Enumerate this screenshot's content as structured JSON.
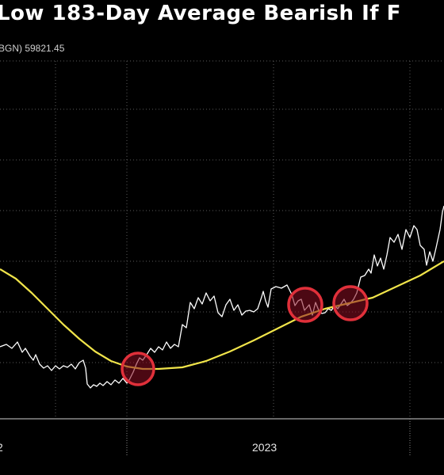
{
  "chart_data": {
    "type": "line",
    "title": "Low 183-Day Average Bearish If F",
    "subtitle": "BGN) 59821.45",
    "x_ticks": [
      "2",
      "2023"
    ],
    "xlabel": "",
    "ylabel": "",
    "grid": true,
    "series": [
      {
        "color": "#ffffff",
        "points": [
          [
            0,
            438
          ],
          [
            8,
            435
          ],
          [
            15,
            440
          ],
          [
            22,
            432
          ],
          [
            28,
            445
          ],
          [
            32,
            440
          ],
          [
            38,
            450
          ],
          [
            42,
            455
          ],
          [
            45,
            448
          ],
          [
            50,
            460
          ],
          [
            55,
            465
          ],
          [
            60,
            462
          ],
          [
            65,
            468
          ],
          [
            70,
            462
          ],
          [
            75,
            466
          ],
          [
            80,
            462
          ],
          [
            85,
            464
          ],
          [
            90,
            460
          ],
          [
            95,
            466
          ],
          [
            100,
            458
          ],
          [
            105,
            455
          ],
          [
            108,
            465
          ],
          [
            110,
            485
          ],
          [
            114,
            490
          ],
          [
            118,
            486
          ],
          [
            122,
            488
          ],
          [
            126,
            484
          ],
          [
            130,
            487
          ],
          [
            135,
            482
          ],
          [
            140,
            486
          ],
          [
            145,
            480
          ],
          [
            150,
            484
          ],
          [
            155,
            478
          ],
          [
            160,
            484
          ],
          [
            163,
            480
          ],
          [
            168,
            470
          ],
          [
            172,
            460
          ],
          [
            176,
            452
          ],
          [
            180,
            455
          ],
          [
            185,
            448
          ],
          [
            190,
            440
          ],
          [
            195,
            445
          ],
          [
            200,
            438
          ],
          [
            205,
            442
          ],
          [
            210,
            432
          ],
          [
            215,
            440
          ],
          [
            220,
            435
          ],
          [
            225,
            438
          ],
          [
            230,
            410
          ],
          [
            235,
            414
          ],
          [
            240,
            382
          ],
          [
            245,
            390
          ],
          [
            250,
            376
          ],
          [
            255,
            384
          ],
          [
            260,
            370
          ],
          [
            265,
            380
          ],
          [
            270,
            374
          ],
          [
            275,
            395
          ],
          [
            280,
            400
          ],
          [
            285,
            385
          ],
          [
            290,
            378
          ],
          [
            295,
            392
          ],
          [
            300,
            385
          ],
          [
            305,
            398
          ],
          [
            310,
            393
          ],
          [
            315,
            392
          ],
          [
            320,
            394
          ],
          [
            325,
            390
          ],
          [
            330,
            375
          ],
          [
            332,
            368
          ],
          [
            335,
            380
          ],
          [
            338,
            388
          ],
          [
            342,
            365
          ],
          [
            348,
            362
          ],
          [
            355,
            364
          ],
          [
            362,
            360
          ],
          [
            368,
            372
          ],
          [
            372,
            386
          ],
          [
            376,
            380
          ],
          [
            380,
            378
          ],
          [
            384,
            392
          ],
          [
            390,
            385
          ],
          [
            394,
            398
          ],
          [
            398,
            382
          ],
          [
            402,
            392
          ],
          [
            406,
            396
          ],
          [
            410,
            395
          ],
          [
            414,
            390
          ],
          [
            418,
            392
          ],
          [
            422,
            386
          ],
          [
            426,
            390
          ],
          [
            430,
            384
          ],
          [
            434,
            378
          ],
          [
            438,
            386
          ],
          [
            442,
            383
          ],
          [
            446,
            378
          ],
          [
            450,
            370
          ],
          [
            452,
            362
          ],
          [
            455,
            350
          ],
          [
            460,
            348
          ],
          [
            465,
            340
          ],
          [
            468,
            345
          ],
          [
            472,
            322
          ],
          [
            476,
            336
          ],
          [
            480,
            326
          ],
          [
            484,
            340
          ],
          [
            488,
            322
          ],
          [
            492,
            300
          ],
          [
            497,
            306
          ],
          [
            502,
            296
          ],
          [
            507,
            315
          ],
          [
            512,
            290
          ],
          [
            517,
            300
          ],
          [
            522,
            285
          ],
          [
            526,
            290
          ],
          [
            530,
            310
          ],
          [
            535,
            315
          ],
          [
            538,
            335
          ],
          [
            542,
            318
          ],
          [
            546,
            330
          ],
          [
            550,
            313
          ],
          [
            555,
            290
          ],
          [
            558,
            268
          ],
          [
            560,
            260
          ]
        ]
      },
      {
        "name": "",
        "color": "#f0e44a",
        "points": [
          [
            0,
            340
          ],
          [
            20,
            352
          ],
          [
            40,
            370
          ],
          [
            60,
            390
          ],
          [
            80,
            410
          ],
          [
            100,
            428
          ],
          [
            120,
            444
          ],
          [
            140,
            456
          ],
          [
            160,
            463
          ],
          [
            180,
            466
          ],
          [
            200,
            466
          ],
          [
            230,
            464
          ],
          [
            260,
            456
          ],
          [
            290,
            444
          ],
          [
            320,
            430
          ],
          [
            350,
            415
          ],
          [
            380,
            400
          ],
          [
            410,
            390
          ],
          [
            440,
            383
          ],
          [
            470,
            376
          ],
          [
            500,
            362
          ],
          [
            530,
            348
          ],
          [
            560,
            330
          ]
        ]
      }
    ],
    "highlights": [
      {
        "x": 174,
        "y": 466,
        "r": 20
      },
      {
        "x": 385,
        "y": 385,
        "r": 21
      },
      {
        "x": 442,
        "y": 383,
        "r": 21
      }
    ],
    "colors": {
      "background": "#000000",
      "highlight_fill": "#8a0f22",
      "highlight_stroke": "#e0303a"
    }
  }
}
